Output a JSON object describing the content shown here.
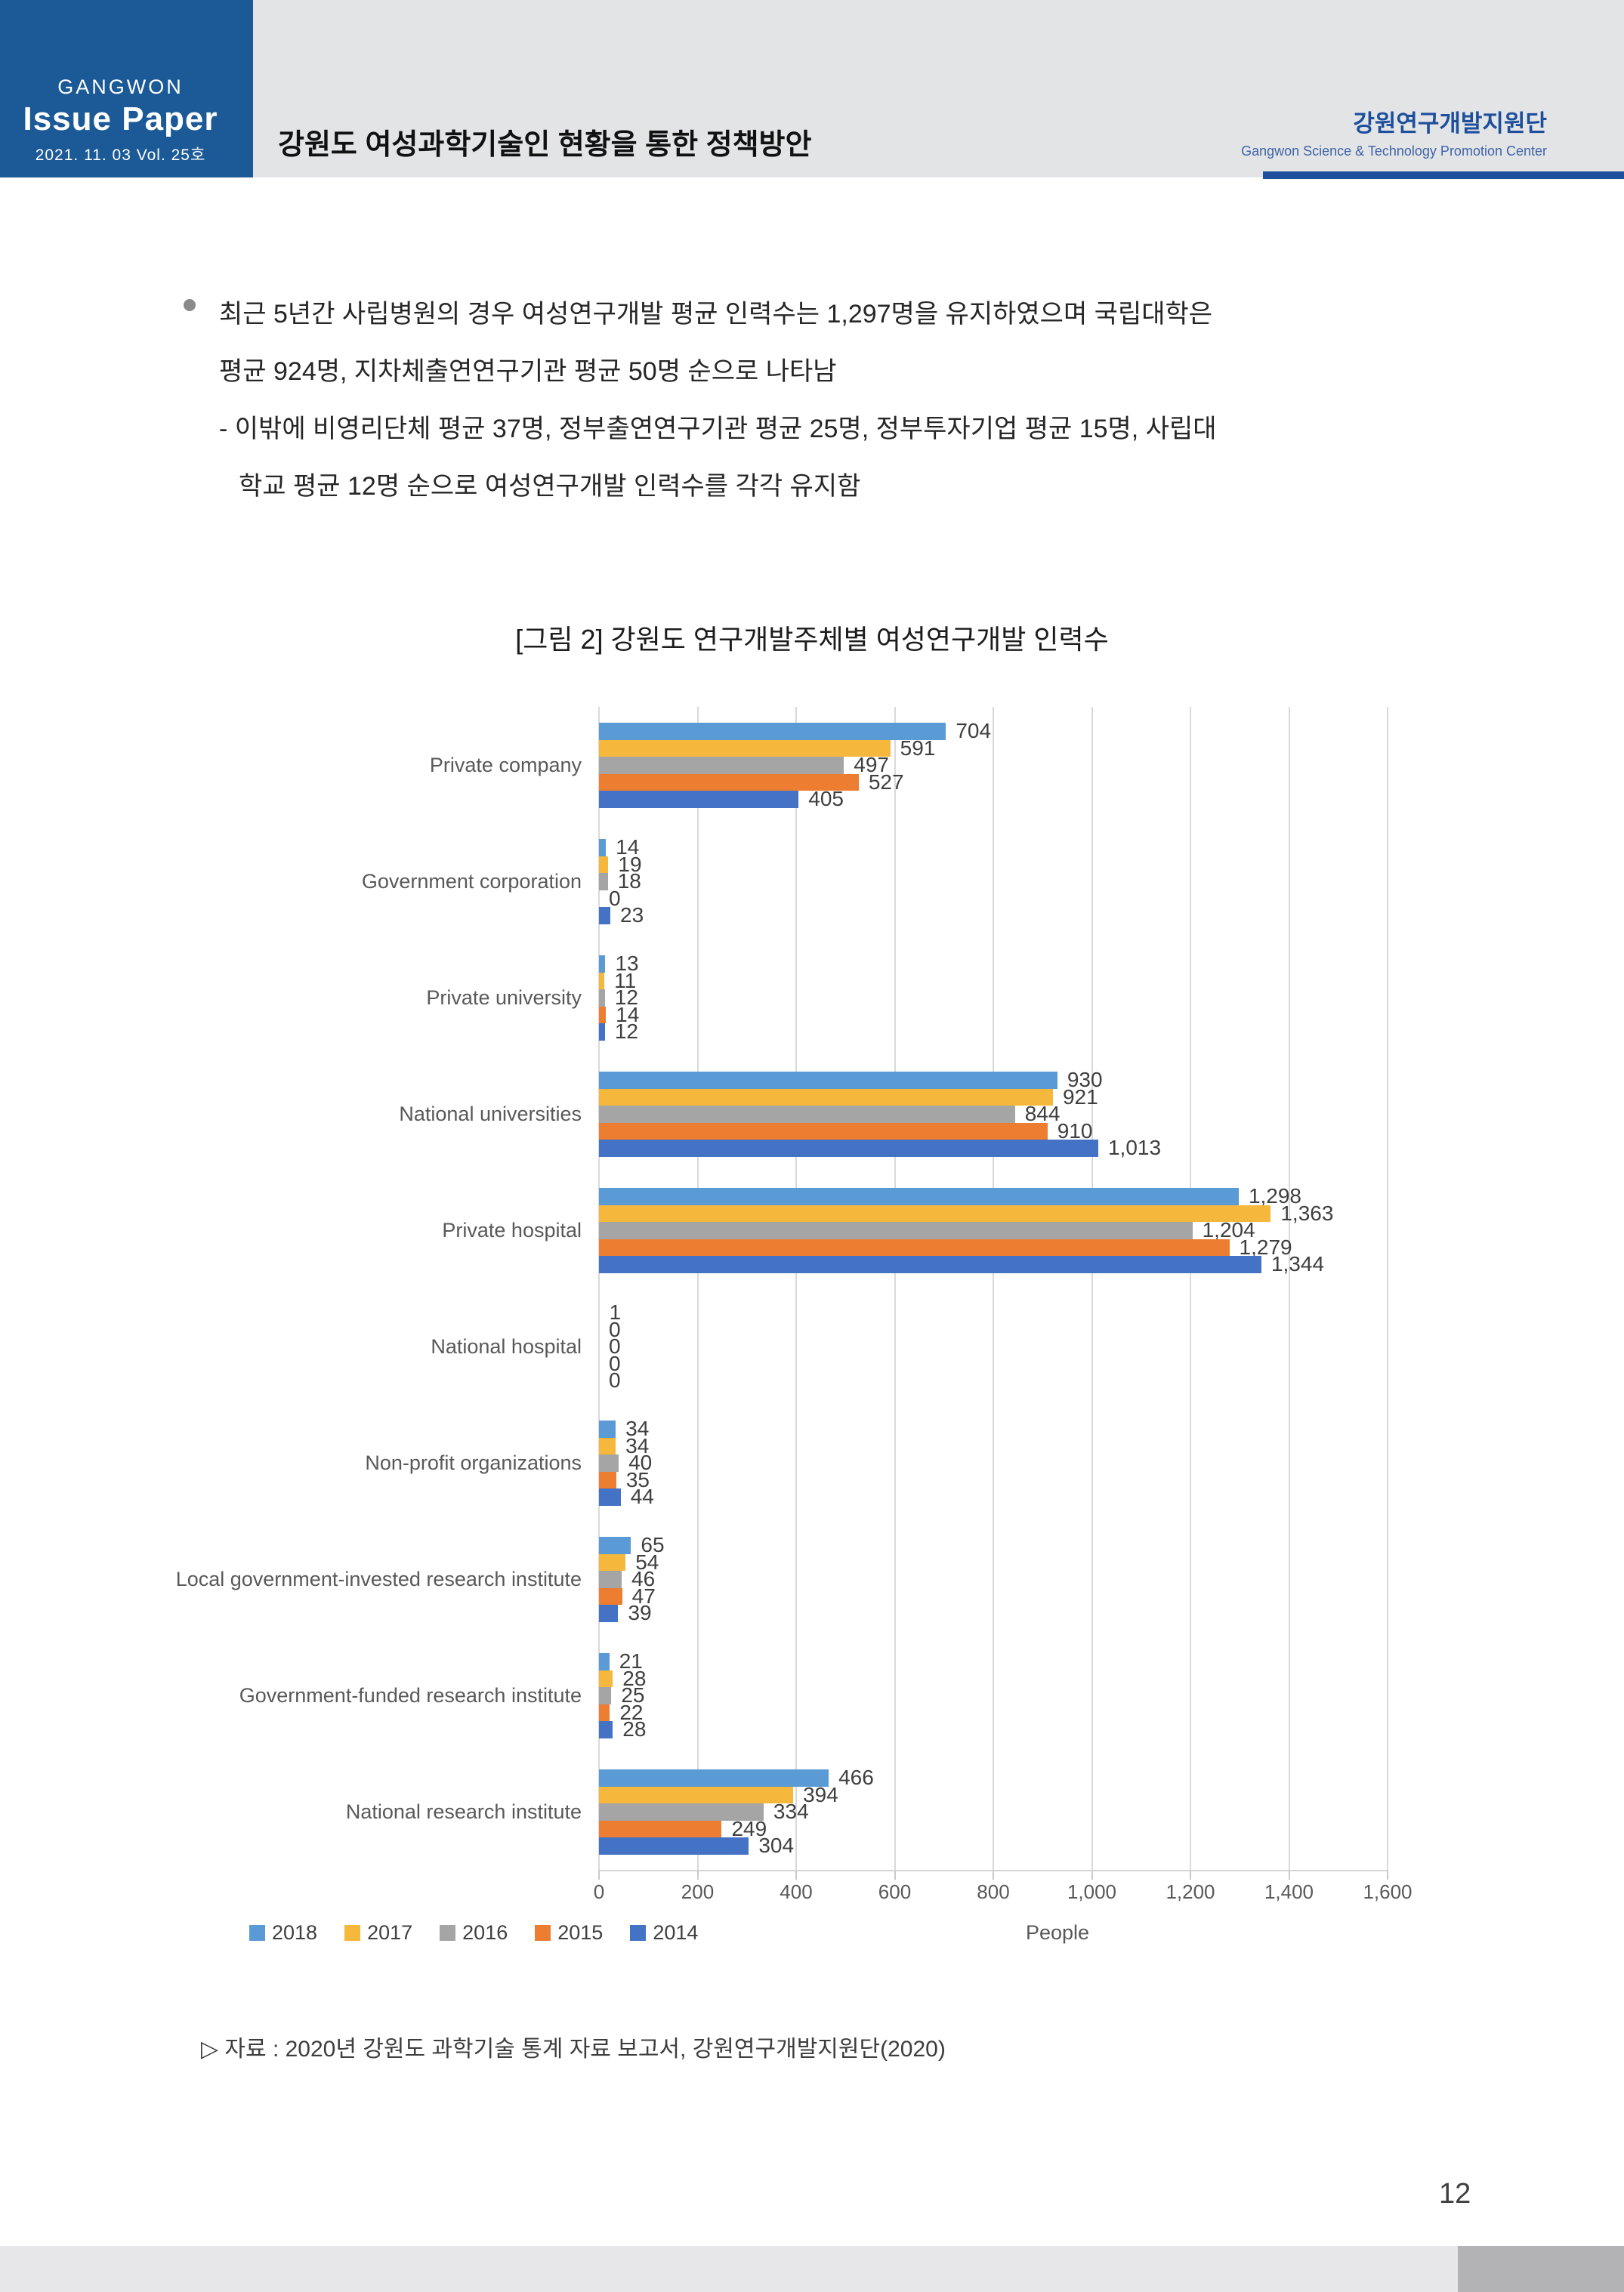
{
  "header": {
    "brand_top": "GANGWON",
    "brand_main": "Issue Paper",
    "brand_sub": "2021. 11. 03  Vol. 25호",
    "doc_title": "강원도 여성과학기술인 현황을 통한 정책방안",
    "org_kr": "강원연구개발지원단",
    "org_en": "Gangwon Science & Technology Promotion Center"
  },
  "content": {
    "bullet_lines": [
      "최근 5년간 사립병원의 경우 여성연구개발 평균 인력수는 1,297명을 유지하였으며 국립대학은",
      "평균 924명, 지차체출연연구기관 평균 50명 순으로 나타남",
      "- 이밖에 비영리단체 평균 37명, 정부출연연구기관 평균 25명, 정부투자기업 평균 15명, 사립대",
      "학교 평균 12명 순으로 여성연구개발 인력수를 각각 유지함"
    ]
  },
  "figure": {
    "source": "▷ 자료 : 2020년 강원도 과학기술 통계 자료 보고서, 강원연구개발지원단(2020)"
  },
  "chart_data": {
    "type": "bar",
    "orientation": "horizontal",
    "title": "[그림 2] 강원도 연구개발주체별 여성연구개발 인력수",
    "xlabel": "People",
    "xlim": [
      0,
      1600
    ],
    "x_ticks": [
      0,
      200,
      400,
      600,
      800,
      1000,
      1200,
      1400,
      1600
    ],
    "grid": true,
    "legend_position": "bottom-left",
    "categories": [
      "Private company",
      "Government corporation",
      "Private university",
      "National universities",
      "Private hospital",
      "National hospital",
      "Non-profit organizations",
      "Local government-invested research institute",
      "Government-funded research institute",
      "National research institute"
    ],
    "series": [
      {
        "name": "2018",
        "color": "#5b9bd5",
        "values": [
          704,
          14,
          13,
          930,
          1298,
          1,
          34,
          65,
          21,
          466
        ]
      },
      {
        "name": "2017",
        "color": "#f5b73c",
        "values": [
          591,
          19,
          11,
          921,
          1363,
          0,
          34,
          54,
          28,
          394
        ]
      },
      {
        "name": "2016",
        "color": "#a5a5a5",
        "values": [
          497,
          18,
          12,
          844,
          1204,
          0,
          40,
          46,
          25,
          334
        ]
      },
      {
        "name": "2015",
        "color": "#ed7d31",
        "values": [
          527,
          0,
          14,
          910,
          1279,
          0,
          35,
          47,
          22,
          249
        ]
      },
      {
        "name": "2014",
        "color": "#4472c4",
        "values": [
          405,
          23,
          12,
          1013,
          1344,
          0,
          44,
          39,
          28,
          304
        ]
      }
    ]
  },
  "page": {
    "number": "12"
  }
}
